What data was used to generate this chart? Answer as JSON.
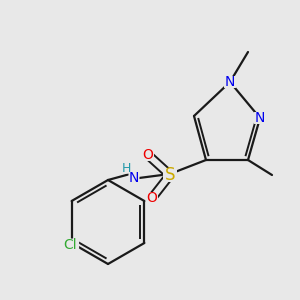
{
  "background_color": "#e8e8e8",
  "bond_color": "#1a1a1a",
  "atom_colors": {
    "N": "#0000ee",
    "O": "#ee0000",
    "S": "#ccaa00",
    "Cl": "#33aa33",
    "H": "#2299aa",
    "C": "#1a1a1a"
  },
  "figsize": [
    3.0,
    3.0
  ],
  "dpi": 100
}
